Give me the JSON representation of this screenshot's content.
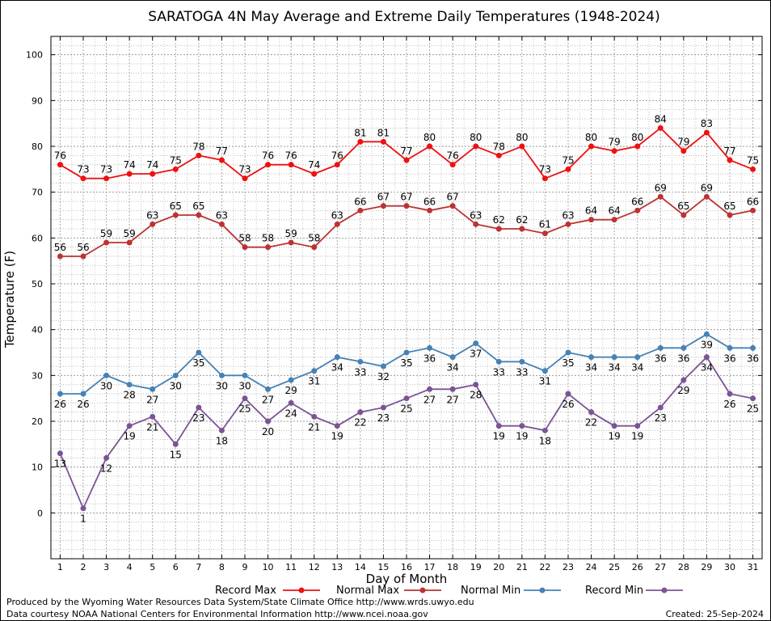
{
  "chart_data": {
    "type": "line",
    "title": "SARATOGA 4N May Average and Extreme Daily Temperatures (1948-2024)",
    "xlabel": "Day of Month",
    "ylabel": "Temperature (F)",
    "xlim": [
      0.6,
      31.4
    ],
    "ylim": [
      -10,
      104
    ],
    "yticks": [
      0,
      10,
      20,
      30,
      40,
      50,
      60,
      70,
      80,
      90,
      100
    ],
    "x": [
      1,
      2,
      3,
      4,
      5,
      6,
      7,
      8,
      9,
      10,
      11,
      12,
      13,
      14,
      15,
      16,
      17,
      18,
      19,
      20,
      21,
      22,
      23,
      24,
      25,
      26,
      27,
      28,
      29,
      30,
      31
    ],
    "grid": true,
    "legend_placement": "bottom",
    "series": [
      {
        "name": "Record Max",
        "color": "#ee1111",
        "label_pos": "above",
        "values": [
          76,
          73,
          73,
          74,
          74,
          75,
          78,
          77,
          73,
          76,
          76,
          74,
          76,
          81,
          81,
          77,
          80,
          76,
          80,
          78,
          80,
          73,
          75,
          80,
          79,
          80,
          84,
          79,
          83,
          77,
          75
        ]
      },
      {
        "name": "Normal Max",
        "color": "#bb3333",
        "label_pos": "above",
        "values": [
          56,
          56,
          59,
          59,
          63,
          65,
          65,
          63,
          58,
          58,
          59,
          58,
          63,
          66,
          67,
          67,
          66,
          67,
          63,
          62,
          62,
          61,
          63,
          64,
          64,
          66,
          69,
          65,
          69,
          65,
          66
        ]
      },
      {
        "name": "Normal Min",
        "color": "#4682b4",
        "label_pos": "below",
        "values": [
          26,
          26,
          30,
          28,
          27,
          30,
          35,
          30,
          30,
          27,
          29,
          31,
          34,
          33,
          32,
          35,
          36,
          34,
          37,
          33,
          33,
          31,
          35,
          34,
          34,
          34,
          36,
          36,
          39,
          36,
          36
        ]
      },
      {
        "name": "Record Min",
        "color": "#7b5496",
        "label_pos": "below",
        "values": [
          13,
          1,
          12,
          19,
          21,
          15,
          23,
          18,
          25,
          20,
          24,
          21,
          19,
          22,
          23,
          25,
          27,
          27,
          28,
          19,
          19,
          18,
          26,
          22,
          19,
          19,
          23,
          29,
          34,
          26,
          25
        ]
      }
    ]
  },
  "footer": {
    "produced_by": "Produced by the Wyoming Water Resources Data System/State Climate Office http://www.wrds.uwyo.edu",
    "data_courtesy": "Data courtesy NOAA National Centers for Environmental Information http://www.ncei.noaa.gov",
    "created": "Created: 25-Sep-2024"
  }
}
